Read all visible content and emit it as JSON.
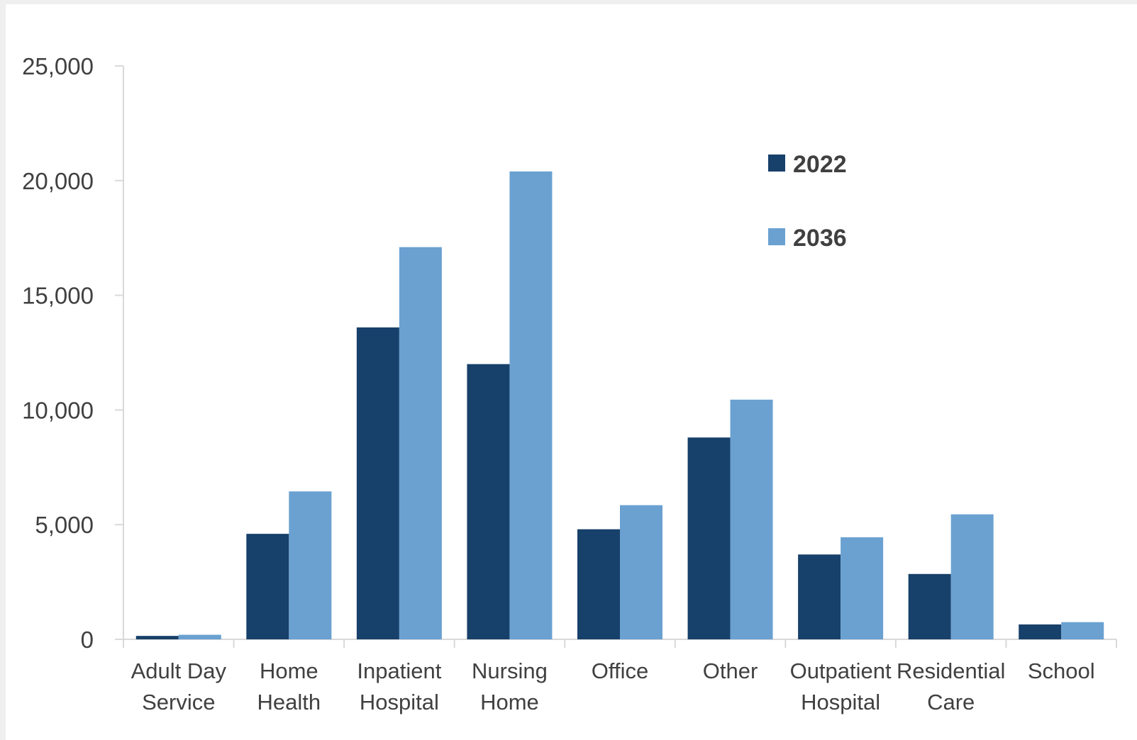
{
  "chart_data": {
    "type": "bar",
    "categories": [
      [
        "Adult Day",
        "Service"
      ],
      [
        "Home",
        "Health"
      ],
      [
        "Inpatient",
        "Hospital"
      ],
      [
        "Nursing",
        "Home"
      ],
      [
        "Office"
      ],
      [
        "Other"
      ],
      [
        "Outpatient",
        "Hospital"
      ],
      [
        "Residential",
        "Care"
      ],
      [
        "School"
      ]
    ],
    "series": [
      {
        "name": "2022",
        "color": "#17406a",
        "values": [
          150,
          4600,
          13600,
          12000,
          4800,
          8800,
          3700,
          2850,
          650
        ]
      },
      {
        "name": "2036",
        "color": "#6aa1d1",
        "values": [
          200,
          6450,
          17100,
          20400,
          5850,
          10450,
          4450,
          5450,
          750
        ]
      }
    ],
    "ylim": [
      0,
      25000
    ],
    "yticks": [
      "0",
      "5,000",
      "10,000",
      "15,000",
      "20,000",
      "25,000"
    ],
    "ytick_values": [
      0,
      5000,
      10000,
      15000,
      20000,
      25000
    ],
    "grid": false,
    "legend": "top-right"
  }
}
